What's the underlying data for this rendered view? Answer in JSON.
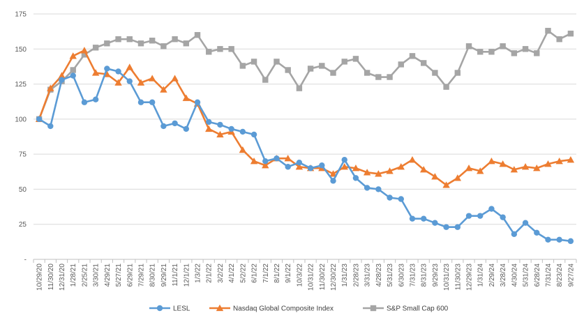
{
  "chart_data": {
    "type": "line",
    "title": "",
    "xlabel": "",
    "ylabel": "",
    "ylim": [
      0,
      175
    ],
    "yticks": [
      0,
      25,
      50,
      75,
      100,
      125,
      150,
      175
    ],
    "ytick_labels": [
      "-",
      "25",
      "50",
      "75",
      "100",
      "125",
      "150",
      "175"
    ],
    "grid": true,
    "legend_position": "bottom",
    "x_labels": [
      "10/29/20",
      "11/30/20",
      "12/31/20",
      "1/28/21",
      "2/25/21",
      "3/30/21",
      "4/29/21",
      "5/27/21",
      "6/29/21",
      "7/29/21",
      "8/30/21",
      "9/29/21",
      "11/1/21",
      "12/1/21",
      "1/3/22",
      "2/1/22",
      "3/2/22",
      "4/1/22",
      "5/2/22",
      "6/1/22",
      "7/1/22",
      "8/1/22",
      "9/1/22",
      "10/3/22",
      "10/31/22",
      "11/30/22",
      "12/30/22",
      "1/31/23",
      "2/28/23",
      "3/31/23",
      "4/28/23",
      "5/31/23",
      "6/30/23",
      "7/31/23",
      "8/31/23",
      "9/29/23",
      "10/31/23",
      "11/30/23",
      "12/29/23",
      "1/31/24",
      "2/29/24",
      "3/28/24",
      "4/30/24",
      "5/31/24",
      "6/28/24",
      "7/31/24",
      "8/23/24",
      "9/27/24"
    ],
    "series": [
      {
        "name": "LESL",
        "color": "#5B9BD5",
        "marker": "circle",
        "values": [
          100,
          95,
          128,
          131,
          112,
          114,
          136,
          134,
          127,
          112,
          112,
          95,
          97,
          93,
          112,
          98,
          96,
          93,
          91,
          89,
          70,
          72,
          66,
          69,
          65,
          67,
          56,
          71,
          58,
          51,
          50,
          44,
          43,
          29,
          29,
          26,
          23,
          23,
          31,
          31,
          36,
          30,
          18,
          26,
          19,
          14,
          14,
          13
        ]
      },
      {
        "name": "Nasdaq Global Composite Index",
        "color": "#ED7D31",
        "marker": "triangle",
        "values": [
          100,
          122,
          131,
          145,
          149,
          133,
          132,
          126,
          137,
          126,
          129,
          121,
          129,
          115,
          111,
          93,
          89,
          91,
          78,
          70,
          67,
          72,
          72,
          66,
          65,
          65,
          61,
          66,
          65,
          62,
          61,
          63,
          66,
          71,
          64,
          59,
          53,
          58,
          65,
          63,
          70,
          68,
          64,
          66,
          65,
          68,
          70,
          71
        ]
      },
      {
        "name": "S&P Small Cap 600",
        "color": "#A5A5A5",
        "marker": "square",
        "values": [
          100,
          121,
          127,
          135,
          146,
          151,
          154,
          157,
          157,
          154,
          156,
          152,
          157,
          154,
          160,
          148,
          150,
          150,
          138,
          141,
          128,
          141,
          135,
          122,
          136,
          138,
          133,
          141,
          143,
          133,
          130,
          130,
          139,
          145,
          140,
          133,
          123,
          133,
          152,
          148,
          148,
          152,
          147,
          150,
          147,
          163,
          157,
          161
        ]
      }
    ]
  }
}
